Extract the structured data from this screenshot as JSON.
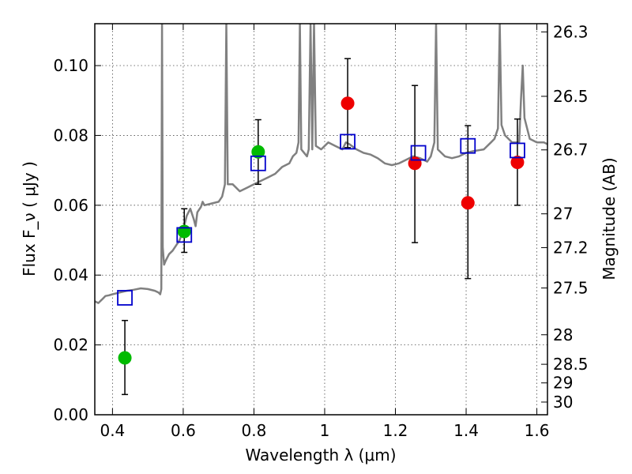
{
  "chart_data": {
    "type": "scatter",
    "xlabel": "Wavelength  λ (μm)",
    "ylabel": "Flux  F_ν  ( μJy )",
    "ylabel_right": "Magnitude (AB)",
    "xlim": [
      0.35,
      1.63
    ],
    "ylim": [
      0.0,
      0.112
    ],
    "grid": true,
    "x_ticks": [
      "0.4",
      "0.6",
      "0.8",
      "1",
      "1.2",
      "1.4",
      "1.6"
    ],
    "x_tick_values": [
      0.4,
      0.6,
      0.8,
      1.0,
      1.2,
      1.4,
      1.6
    ],
    "y_ticks": [
      "0.00",
      "0.02",
      "0.04",
      "0.06",
      "0.08",
      "0.10"
    ],
    "y_tick_values": [
      0.0,
      0.02,
      0.04,
      0.06,
      0.08,
      0.1
    ],
    "right_ticks": [
      "26.3",
      "26.5",
      "26.7",
      "27",
      "27.2",
      "27.5",
      "28",
      "28.5",
      "29",
      "30"
    ],
    "right_tick_values": [
      26.3,
      26.5,
      26.7,
      27.0,
      27.2,
      27.5,
      28.0,
      28.5,
      29.0,
      30.0
    ],
    "series": [
      {
        "marker": "circle",
        "color": "#00bb00",
        "points": [
          {
            "x": 0.435,
            "y": 0.0163,
            "ylo": 0.0058,
            "yhi": 0.027
          },
          {
            "x": 0.603,
            "y": 0.0525,
            "ylo": 0.0465,
            "yhi": 0.059
          },
          {
            "x": 0.812,
            "y": 0.0753,
            "ylo": 0.066,
            "yhi": 0.0845
          }
        ]
      },
      {
        "marker": "circle",
        "color": "#ee0000",
        "points": [
          {
            "x": 1.065,
            "y": 0.0892,
            "ylo": 0.0765,
            "yhi": 0.102
          },
          {
            "x": 1.255,
            "y": 0.072,
            "ylo": 0.0493,
            "yhi": 0.0943
          },
          {
            "x": 1.405,
            "y": 0.0607,
            "ylo": 0.039,
            "yhi": 0.0828
          },
          {
            "x": 1.545,
            "y": 0.0723,
            "ylo": 0.06,
            "yhi": 0.0847
          }
        ]
      },
      {
        "marker": "open-square",
        "color": "#0000cc",
        "points": [
          {
            "x": 0.435,
            "y": 0.0335
          },
          {
            "x": 0.603,
            "y": 0.0515
          },
          {
            "x": 0.812,
            "y": 0.072
          },
          {
            "x": 1.065,
            "y": 0.0782
          },
          {
            "x": 1.265,
            "y": 0.075
          },
          {
            "x": 1.405,
            "y": 0.077
          },
          {
            "x": 1.545,
            "y": 0.0757
          }
        ]
      }
    ],
    "model_spectrum": {
      "color": "#808080",
      "points": [
        [
          0.35,
          0.0325
        ],
        [
          0.36,
          0.032
        ],
        [
          0.37,
          0.033
        ],
        [
          0.38,
          0.034
        ],
        [
          0.39,
          0.0342
        ],
        [
          0.4,
          0.0345
        ],
        [
          0.42,
          0.035
        ],
        [
          0.44,
          0.0355
        ],
        [
          0.46,
          0.0358
        ],
        [
          0.48,
          0.0362
        ],
        [
          0.5,
          0.036
        ],
        [
          0.52,
          0.0355
        ],
        [
          0.53,
          0.035
        ],
        [
          0.535,
          0.0345
        ],
        [
          0.538,
          0.036
        ],
        [
          0.54,
          0.112
        ],
        [
          0.542,
          0.048
        ],
        [
          0.546,
          0.043
        ],
        [
          0.55,
          0.044
        ],
        [
          0.56,
          0.046
        ],
        [
          0.57,
          0.047
        ],
        [
          0.58,
          0.0485
        ],
        [
          0.59,
          0.05
        ],
        [
          0.6,
          0.053
        ],
        [
          0.61,
          0.057
        ],
        [
          0.62,
          0.059
        ],
        [
          0.63,
          0.056
        ],
        [
          0.635,
          0.054
        ],
        [
          0.64,
          0.058
        ],
        [
          0.65,
          0.0595
        ],
        [
          0.655,
          0.061
        ],
        [
          0.66,
          0.06
        ],
        [
          0.68,
          0.0605
        ],
        [
          0.7,
          0.061
        ],
        [
          0.71,
          0.0625
        ],
        [
          0.718,
          0.066
        ],
        [
          0.722,
          0.112
        ],
        [
          0.726,
          0.066
        ],
        [
          0.74,
          0.066
        ],
        [
          0.76,
          0.064
        ],
        [
          0.78,
          0.065
        ],
        [
          0.8,
          0.066
        ],
        [
          0.82,
          0.067
        ],
        [
          0.84,
          0.068
        ],
        [
          0.86,
          0.069
        ],
        [
          0.88,
          0.071
        ],
        [
          0.9,
          0.072
        ],
        [
          0.91,
          0.074
        ],
        [
          0.92,
          0.075
        ],
        [
          0.926,
          0.078
        ],
        [
          0.93,
          0.112
        ],
        [
          0.934,
          0.076
        ],
        [
          0.95,
          0.074
        ],
        [
          0.955,
          0.076
        ],
        [
          0.96,
          0.112
        ],
        [
          0.965,
          0.076
        ],
        [
          0.97,
          0.112
        ],
        [
          0.975,
          0.077
        ],
        [
          0.99,
          0.076
        ],
        [
          1.01,
          0.078
        ],
        [
          1.03,
          0.077
        ],
        [
          1.05,
          0.076
        ],
        [
          1.06,
          0.078
        ],
        [
          1.07,
          0.0775
        ],
        [
          1.09,
          0.076
        ],
        [
          1.11,
          0.075
        ],
        [
          1.13,
          0.0745
        ],
        [
          1.15,
          0.0735
        ],
        [
          1.17,
          0.072
        ],
        [
          1.19,
          0.0715
        ],
        [
          1.21,
          0.072
        ],
        [
          1.23,
          0.073
        ],
        [
          1.25,
          0.074
        ],
        [
          1.27,
          0.0735
        ],
        [
          1.29,
          0.0725
        ],
        [
          1.3,
          0.074
        ],
        [
          1.31,
          0.078
        ],
        [
          1.315,
          0.112
        ],
        [
          1.32,
          0.076
        ],
        [
          1.34,
          0.074
        ],
        [
          1.36,
          0.0735
        ],
        [
          1.38,
          0.074
        ],
        [
          1.4,
          0.075
        ],
        [
          1.42,
          0.0755
        ],
        [
          1.45,
          0.076
        ],
        [
          1.47,
          0.078
        ],
        [
          1.48,
          0.079
        ],
        [
          1.49,
          0.082
        ],
        [
          1.495,
          0.112
        ],
        [
          1.5,
          0.083
        ],
        [
          1.51,
          0.08
        ],
        [
          1.53,
          0.078
        ],
        [
          1.55,
          0.078
        ],
        [
          1.555,
          0.09
        ],
        [
          1.56,
          0.1
        ],
        [
          1.565,
          0.085
        ],
        [
          1.58,
          0.079
        ],
        [
          1.6,
          0.078
        ],
        [
          1.62,
          0.078
        ],
        [
          1.63,
          0.0775
        ]
      ]
    }
  }
}
